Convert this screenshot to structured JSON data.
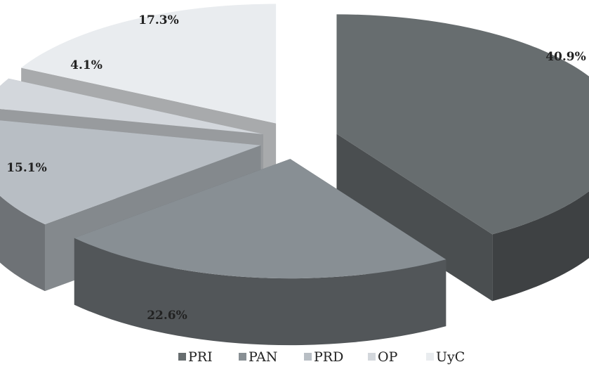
{
  "chart_data": {
    "type": "pie",
    "title": "",
    "legend_position": "bottom",
    "slices": [
      {
        "name": "PRI",
        "value": 40.9,
        "label": "40.9%",
        "color": "#676d6f"
      },
      {
        "name": "PAN",
        "value": 22.6,
        "label": "22.6%",
        "color": "#888f94"
      },
      {
        "name": "PRD",
        "value": 15.1,
        "label": "15.1%",
        "color": "#b8bec4"
      },
      {
        "name": "OP",
        "value": 4.1,
        "label": "4.1%",
        "color": "#d3d7dc"
      },
      {
        "name": "UyC",
        "value": 17.3,
        "label": "17.3%",
        "color": "#e9ecef"
      }
    ]
  }
}
